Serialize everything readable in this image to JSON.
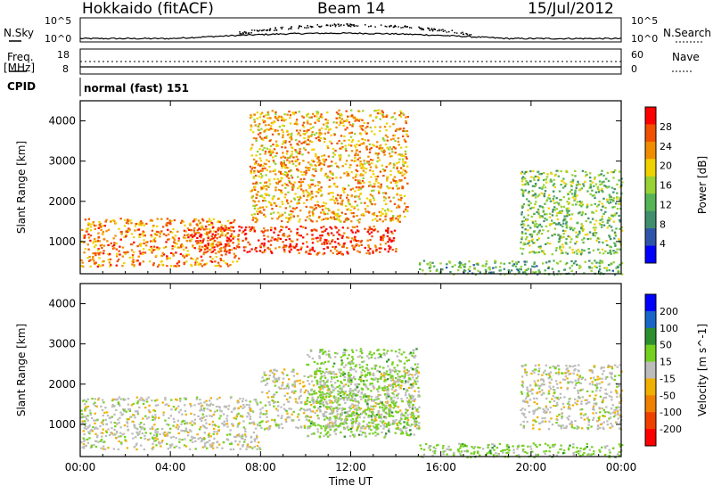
{
  "header": {
    "station": "Hokkaido (fitACF)",
    "beam": "Beam 14",
    "date": "15/Jul/2012"
  },
  "params": {
    "nsky_label": "N.Sky",
    "nsearch_label": "N.Search",
    "nsky_ticks": [
      "10^5",
      "10^0"
    ],
    "nsearch_ticks": [
      "10^5",
      "10^0"
    ],
    "freq_label": "Freq.",
    "freq_unit": "[MHz]",
    "freq_ticks": [
      "18",
      "8"
    ],
    "nave_label": "Nave",
    "nave_ticks": [
      "60",
      "0"
    ],
    "cpid_label": "CPID",
    "cpid_text": "normal (fast) 151"
  },
  "colors": {
    "power": [
      "#0000ff",
      "#2f55ab",
      "#3f8f6f",
      "#55b455",
      "#99d233",
      "#f0d200",
      "#f08c00",
      "#f05000",
      "#ff0000"
    ],
    "velocity": [
      "#0000ff",
      "#1a66c8",
      "#2e8f2e",
      "#74d21f",
      "#bcbcbc",
      "#f0b000",
      "#f08000",
      "#f04000",
      "#ff0000"
    ],
    "ground_scatter": "#bcbcbc"
  },
  "chart_data": [
    {
      "type": "heatmap",
      "title": "",
      "xlabel": "",
      "ylabel": "Slant Range [km]",
      "xlim": [
        "00:00",
        "24:00"
      ],
      "ylim": [
        200,
        4500
      ],
      "x_ticks": [
        "00:00",
        "04:00",
        "08:00",
        "12:00",
        "16:00",
        "20:00",
        "00:00"
      ],
      "y_ticks": [
        1000,
        2000,
        3000,
        4000
      ],
      "colorbar": {
        "label": "Power [dB]",
        "range": [
          0,
          32
        ],
        "ticks": [
          4,
          8,
          12,
          16,
          20,
          24,
          28
        ]
      },
      "features": [
        {
          "start": "00:00",
          "end": "07:00",
          "range_min_km": 400,
          "range_max_km": 1600,
          "power_db": 24
        },
        {
          "start": "05:00",
          "end": "14:00",
          "range_min_km": 700,
          "range_max_km": 1400,
          "power_db": 28
        },
        {
          "start": "07:30",
          "end": "14:30",
          "range_min_km": 1500,
          "range_max_km": 4300,
          "power_db": 22
        },
        {
          "start": "15:00",
          "end": "24:00",
          "range_min_km": 200,
          "range_max_km": 550,
          "power_db": 12
        },
        {
          "start": "19:30",
          "end": "24:00",
          "range_min_km": 700,
          "range_max_km": 2800,
          "power_db": 14
        }
      ]
    },
    {
      "type": "heatmap",
      "title": "",
      "xlabel": "Time UT",
      "ylabel": "Slant Range [km]",
      "xlim": [
        "00:00",
        "24:00"
      ],
      "ylim": [
        200,
        4500
      ],
      "x_ticks": [
        "00:00",
        "04:00",
        "08:00",
        "12:00",
        "16:00",
        "20:00",
        "00:00"
      ],
      "y_ticks": [
        1000,
        2000,
        3000,
        4000
      ],
      "colorbar": {
        "label": "Velocity [m s^-1]",
        "range": [
          -250,
          250
        ],
        "ticks": [
          200,
          100,
          50,
          15,
          -15,
          -50,
          -100,
          -200
        ]
      },
      "features": [
        {
          "start": "00:00",
          "end": "08:00",
          "range_min_km": 400,
          "range_max_km": 1700,
          "velocity_ms": 0
        },
        {
          "start": "08:00",
          "end": "15:00",
          "range_min_km": 900,
          "range_max_km": 2400,
          "velocity_ms": 0
        },
        {
          "start": "10:00",
          "end": "15:00",
          "range_min_km": 700,
          "range_max_km": 2900,
          "velocity_ms": 40
        },
        {
          "start": "15:00",
          "end": "24:00",
          "range_min_km": 200,
          "range_max_km": 550,
          "velocity_ms": 40
        },
        {
          "start": "19:30",
          "end": "24:00",
          "range_min_km": 900,
          "range_max_km": 2500,
          "velocity_ms": 0
        }
      ]
    }
  ]
}
